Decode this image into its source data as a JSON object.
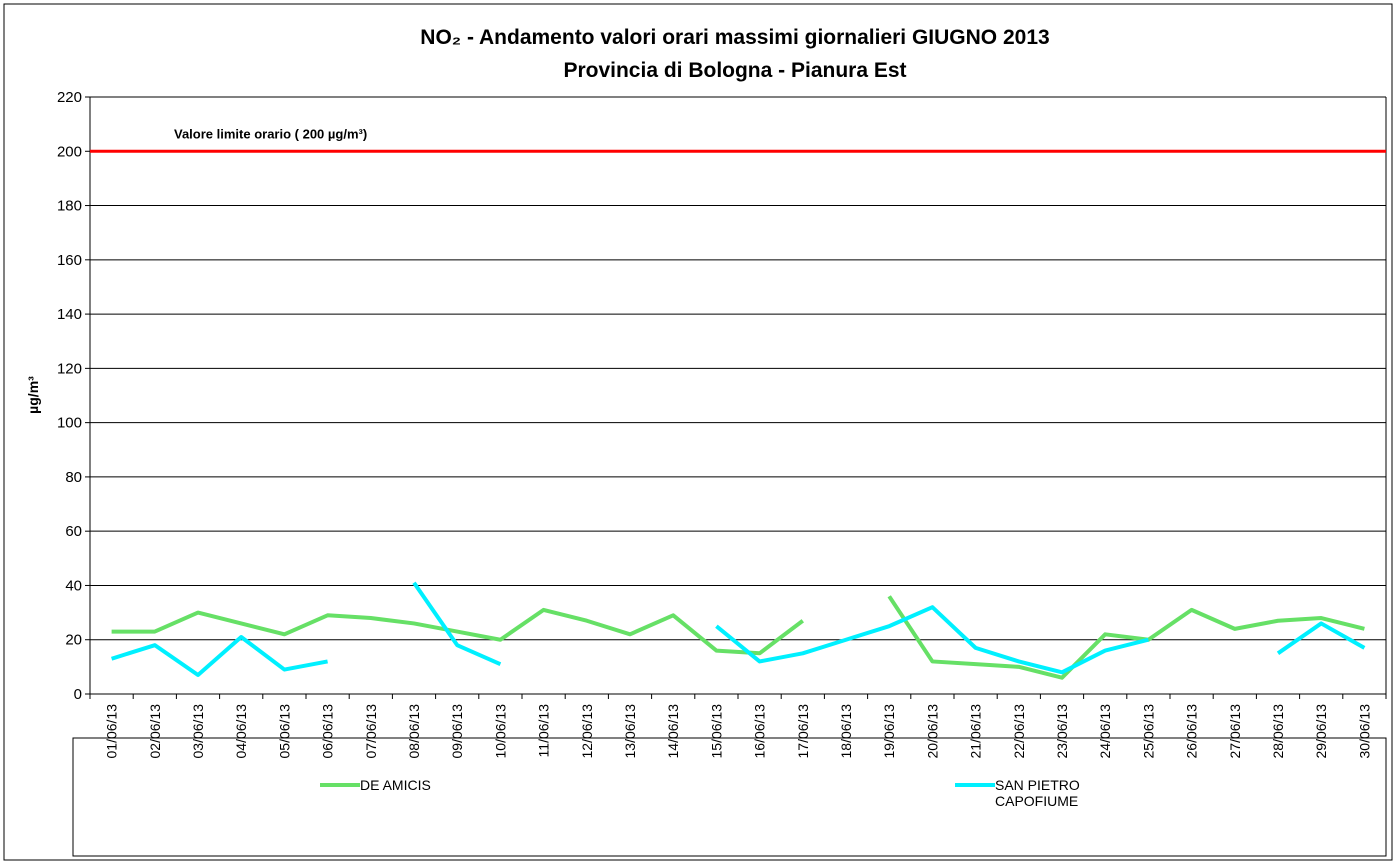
{
  "chart_data": {
    "type": "line",
    "title": "NO₂ - Andamento valori orari massimi giornalieri GIUGNO 2013",
    "subtitle": "Provincia di Bologna - Pianura Est",
    "y_label": "µg/m³",
    "categories": [
      "01/06/13",
      "02/06/13",
      "03/06/13",
      "04/06/13",
      "05/06/13",
      "06/06/13",
      "07/06/13",
      "08/06/13",
      "09/06/13",
      "10/06/13",
      "11/06/13",
      "12/06/13",
      "13/06/13",
      "14/06/13",
      "15/06/13",
      "16/06/13",
      "17/06/13",
      "18/06/13",
      "19/06/13",
      "20/06/13",
      "21/06/13",
      "22/06/13",
      "23/06/13",
      "24/06/13",
      "25/06/13",
      "26/06/13",
      "27/06/13",
      "28/06/13",
      "29/06/13",
      "30/06/13"
    ],
    "series": [
      {
        "name": "DE AMICIS",
        "color": "#66e066",
        "values": [
          23,
          23,
          30,
          26,
          22,
          29,
          28,
          26,
          23,
          20,
          31,
          27,
          22,
          29,
          16,
          15,
          27,
          null,
          36,
          12,
          11,
          10,
          6,
          22,
          20,
          31,
          24,
          27,
          28,
          24
        ]
      },
      {
        "name": "SAN PIETRO CAPOFIUME",
        "color": "#00f0ff",
        "values": [
          13,
          18,
          7,
          21,
          9,
          12,
          null,
          41,
          18,
          11,
          null,
          null,
          null,
          null,
          25,
          12,
          15,
          20,
          25,
          32,
          17,
          12,
          8,
          16,
          20,
          null,
          null,
          15,
          26,
          17
        ]
      }
    ],
    "limit": {
      "value": 200,
      "color": "#ff0000",
      "label": "Valore limite orario ( 200 µg/m³)"
    },
    "ylim": [
      0,
      220
    ],
    "yticks": [
      0,
      20,
      40,
      60,
      80,
      100,
      120,
      140,
      160,
      180,
      200,
      220
    ],
    "grid": true
  }
}
